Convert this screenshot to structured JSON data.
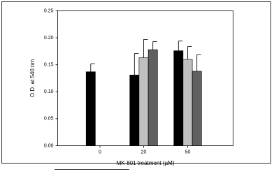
{
  "chart_data": {
    "type": "bar",
    "categories": [
      "0",
      "20",
      "50"
    ],
    "x_label": "MK-801 treatment (µM)",
    "y_label": "O.D. at 540 nm",
    "series": [
      {
        "color": "#000000",
        "values": [
          0.137,
          0.131,
          0.176
        ],
        "errors": [
          0.015,
          0.04,
          0.018
        ]
      },
      {
        "color": "#c0c0c0",
        "values": [
          null,
          0.163,
          0.16
        ],
        "errors": [
          null,
          0.034,
          0.024
        ]
      },
      {
        "color": "#606060",
        "values": [
          null,
          0.178,
          0.138
        ],
        "errors": [
          null,
          0.015,
          0.031
        ]
      }
    ],
    "ylim": [
      0,
      0.25
    ],
    "yticks": [
      {
        "value": 0,
        "label": "0.00"
      },
      {
        "value": 0.05,
        "label": "0.05"
      },
      {
        "value": 0.1,
        "label": "0.10"
      },
      {
        "value": 0.15,
        "label": "0.15"
      },
      {
        "value": 0.2,
        "label": "0.20"
      },
      {
        "value": 0.25,
        "label": "0.25"
      }
    ]
  }
}
